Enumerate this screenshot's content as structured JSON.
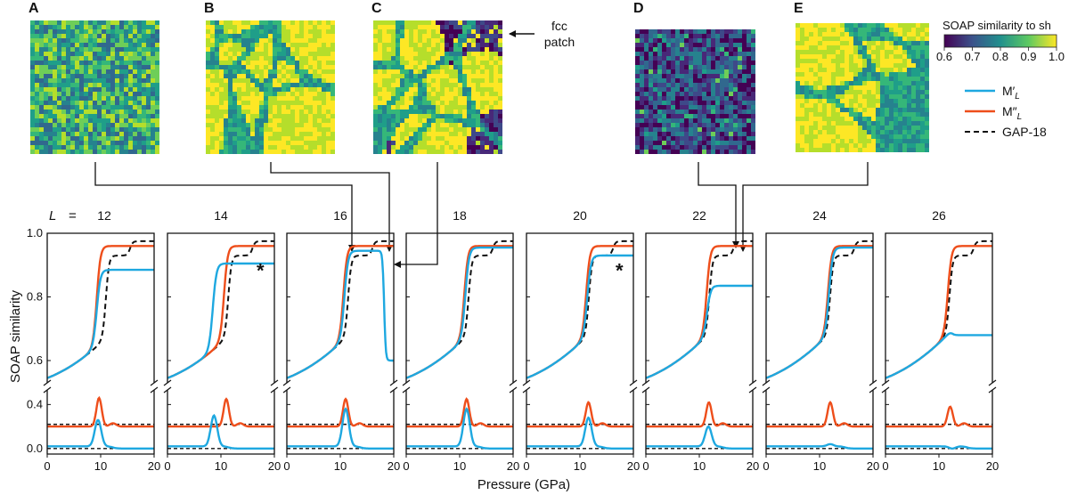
{
  "figure": {
    "snapshots": [
      {
        "letter": "A",
        "palette": "amorphous"
      },
      {
        "letter": "B",
        "palette": "grains"
      },
      {
        "letter": "C",
        "palette": "mixed"
      },
      {
        "letter": "D",
        "palette": "dark"
      },
      {
        "letter": "E",
        "palette": "grains_large"
      }
    ],
    "fcc_annotation": [
      "fcc",
      "patch"
    ],
    "colorbar": {
      "label": "SOAP similarity to sh",
      "ticks": [
        "0.6",
        "0.7",
        "0.8",
        "0.9",
        "1.0"
      ],
      "colors": [
        "#440154",
        "#3b528b",
        "#21908d",
        "#5dc962",
        "#fde725"
      ]
    },
    "legend": {
      "entries": [
        {
          "base": "M",
          "prime": "′",
          "sub": "L",
          "color": "#1ea8e0",
          "style": "solid"
        },
        {
          "base": "M",
          "prime": "″",
          "sub": "L",
          "color": "#ee4e1b",
          "style": "solid"
        },
        {
          "label": "GAP-18",
          "color": "#111111",
          "style": "dashed"
        }
      ]
    },
    "L_symbol": "L",
    "L_equals": "=",
    "star": "*"
  },
  "chart_data": {
    "type": "line",
    "xlabel": "Pressure (GPa)",
    "ylabel": "SOAP similarity",
    "xlim": [
      0,
      20
    ],
    "xticks": [
      "0",
      "10",
      "20"
    ],
    "upper_ylim": [
      0.53,
      1.0
    ],
    "upper_yticks": [
      "0.6",
      "0.8",
      "1.0"
    ],
    "lower_ylim": [
      -0.05,
      0.5
    ],
    "lower_yticks": [
      "0.0",
      "0.4"
    ],
    "y_break": true,
    "gap18_dashed_baseline_lower": [
      0.22,
      0.0
    ],
    "panels": [
      {
        "L": "12",
        "star": false,
        "m1_jump_P": 9.3,
        "m2_jump_P": 9.3,
        "gap_jump_P": 11.0,
        "m1_final": 0.885,
        "m1_collapse_P": null,
        "m1_collapse_final": null,
        "m2_peak": 0.46,
        "m1_peak": 0.26
      },
      {
        "L": "14",
        "star": true,
        "m1_jump_P": 8.5,
        "m2_jump_P": 10.6,
        "gap_jump_P": 11.4,
        "m1_final": 0.905,
        "m1_collapse_P": null,
        "m1_collapse_final": null,
        "m2_peak": 0.45,
        "m1_peak": 0.3
      },
      {
        "L": "16",
        "star": false,
        "m1_jump_P": 10.8,
        "m2_jump_P": 10.6,
        "gap_jump_P": 11.5,
        "m1_final": 0.945,
        "m1_collapse_P": 18.2,
        "m1_collapse_final": 0.6,
        "m2_peak": 0.45,
        "m1_peak": 0.36
      },
      {
        "L": "18",
        "star": false,
        "m1_jump_P": 11.1,
        "m2_jump_P": 10.9,
        "gap_jump_P": 11.7,
        "m1_final": 0.955,
        "m1_collapse_P": null,
        "m1_collapse_final": null,
        "m2_peak": 0.45,
        "m1_peak": 0.36
      },
      {
        "L": "20",
        "star": true,
        "m1_jump_P": 11.4,
        "m2_jump_P": 11.2,
        "gap_jump_P": 11.7,
        "m1_final": 0.93,
        "m1_collapse_P": null,
        "m1_collapse_final": null,
        "m2_peak": 0.42,
        "m1_peak": 0.28
      },
      {
        "L": "22",
        "star": false,
        "m1_jump_P": 11.5,
        "m2_jump_P": 11.4,
        "gap_jump_P": 11.9,
        "m1_final": 0.835,
        "m1_collapse_P": null,
        "m1_collapse_final": null,
        "m2_peak": 0.42,
        "m1_peak": 0.2
      },
      {
        "L": "24",
        "star": false,
        "m1_jump_P": 11.8,
        "m2_jump_P": 11.6,
        "gap_jump_P": 12.0,
        "m1_final": 0.955,
        "m1_collapse_P": null,
        "m1_collapse_final": null,
        "m2_peak": 0.42,
        "m1_peak": 0.04
      },
      {
        "L": "26",
        "star": false,
        "m1_jump_P": 12.3,
        "m2_jump_P": 11.7,
        "gap_jump_P": 12.0,
        "m1_final": 0.68,
        "m1_collapse_P": 12.8,
        "m1_collapse_final": 0.68,
        "m2_peak": 0.38,
        "m1_peak": 0.0
      }
    ],
    "snapshot_links": [
      {
        "snapshot": "A",
        "panel_L": "16",
        "P": 12,
        "y": 0.945
      },
      {
        "snapshot": "B",
        "panel_L": "16",
        "P": 18.5,
        "y": 0.955
      },
      {
        "snapshot": "C",
        "panel_L": "16",
        "P": 19.5,
        "y": 0.88
      },
      {
        "snapshot": "D",
        "panel_L": "22",
        "P": 16,
        "y": 0.97
      },
      {
        "snapshot": "E",
        "panel_L": "22",
        "P": 17.5,
        "y": 0.96
      }
    ]
  }
}
